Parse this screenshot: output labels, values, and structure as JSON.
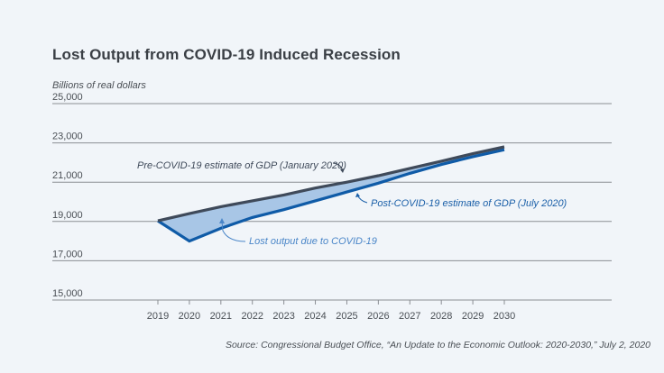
{
  "chart_data": {
    "type": "area",
    "title": "Lost Output from COVID-19 Induced Recession",
    "ylabel": "Billions of real dollars",
    "xlabel": "",
    "source": "Source: Congressional Budget Office, “An Update to the Economic Outlook: 2020-2030,” July 2, 2020",
    "x": [
      2019,
      2020,
      2021,
      2022,
      2023,
      2024,
      2025,
      2026,
      2027,
      2028,
      2029,
      2030
    ],
    "x_tick_labels": [
      "2019",
      "2020",
      "2021",
      "2022",
      "2023",
      "2024",
      "2025",
      "2026",
      "2027",
      "2028",
      "2029",
      "2030"
    ],
    "ylim": [
      15000,
      25000
    ],
    "y_ticks": [
      15000,
      17000,
      19000,
      21000,
      23000,
      25000
    ],
    "y_tick_labels": [
      "15,000",
      "17,000",
      "19,000",
      "21,000",
      "23,000",
      "25,000"
    ],
    "grid": "horizontal",
    "series": [
      {
        "name": "Pre-COVID-19 estimate of GDP (January 2020)",
        "color": "#3f4a5a",
        "values": [
          19030,
          19400,
          19750,
          20050,
          20350,
          20700,
          21000,
          21330,
          21700,
          22070,
          22450,
          22800
        ]
      },
      {
        "name": "Post-COVID-19 estimate of GDP (July 2020)",
        "color": "#0f5ba7",
        "values": [
          19030,
          18000,
          18650,
          19200,
          19600,
          20050,
          20500,
          20950,
          21450,
          21900,
          22300,
          22650
        ]
      }
    ],
    "fill_between": {
      "label": "Lost output due to COVID-19",
      "color": "#a8c6e6"
    },
    "annotations": [
      {
        "text": "Pre-COVID-19 estimate of GDP (January 2020)",
        "color": "#3f4a5a",
        "points_to_year": 2025,
        "series": 0
      },
      {
        "text": "Post-COVID-19 estimate of GDP (July 2020)",
        "color": "#1a5fa8",
        "points_to_year": 2026,
        "series": 1
      },
      {
        "text": "Lost output due to COVID-19",
        "color": "#4a86c8",
        "points_to_year": 2021,
        "series": "fill"
      }
    ]
  }
}
